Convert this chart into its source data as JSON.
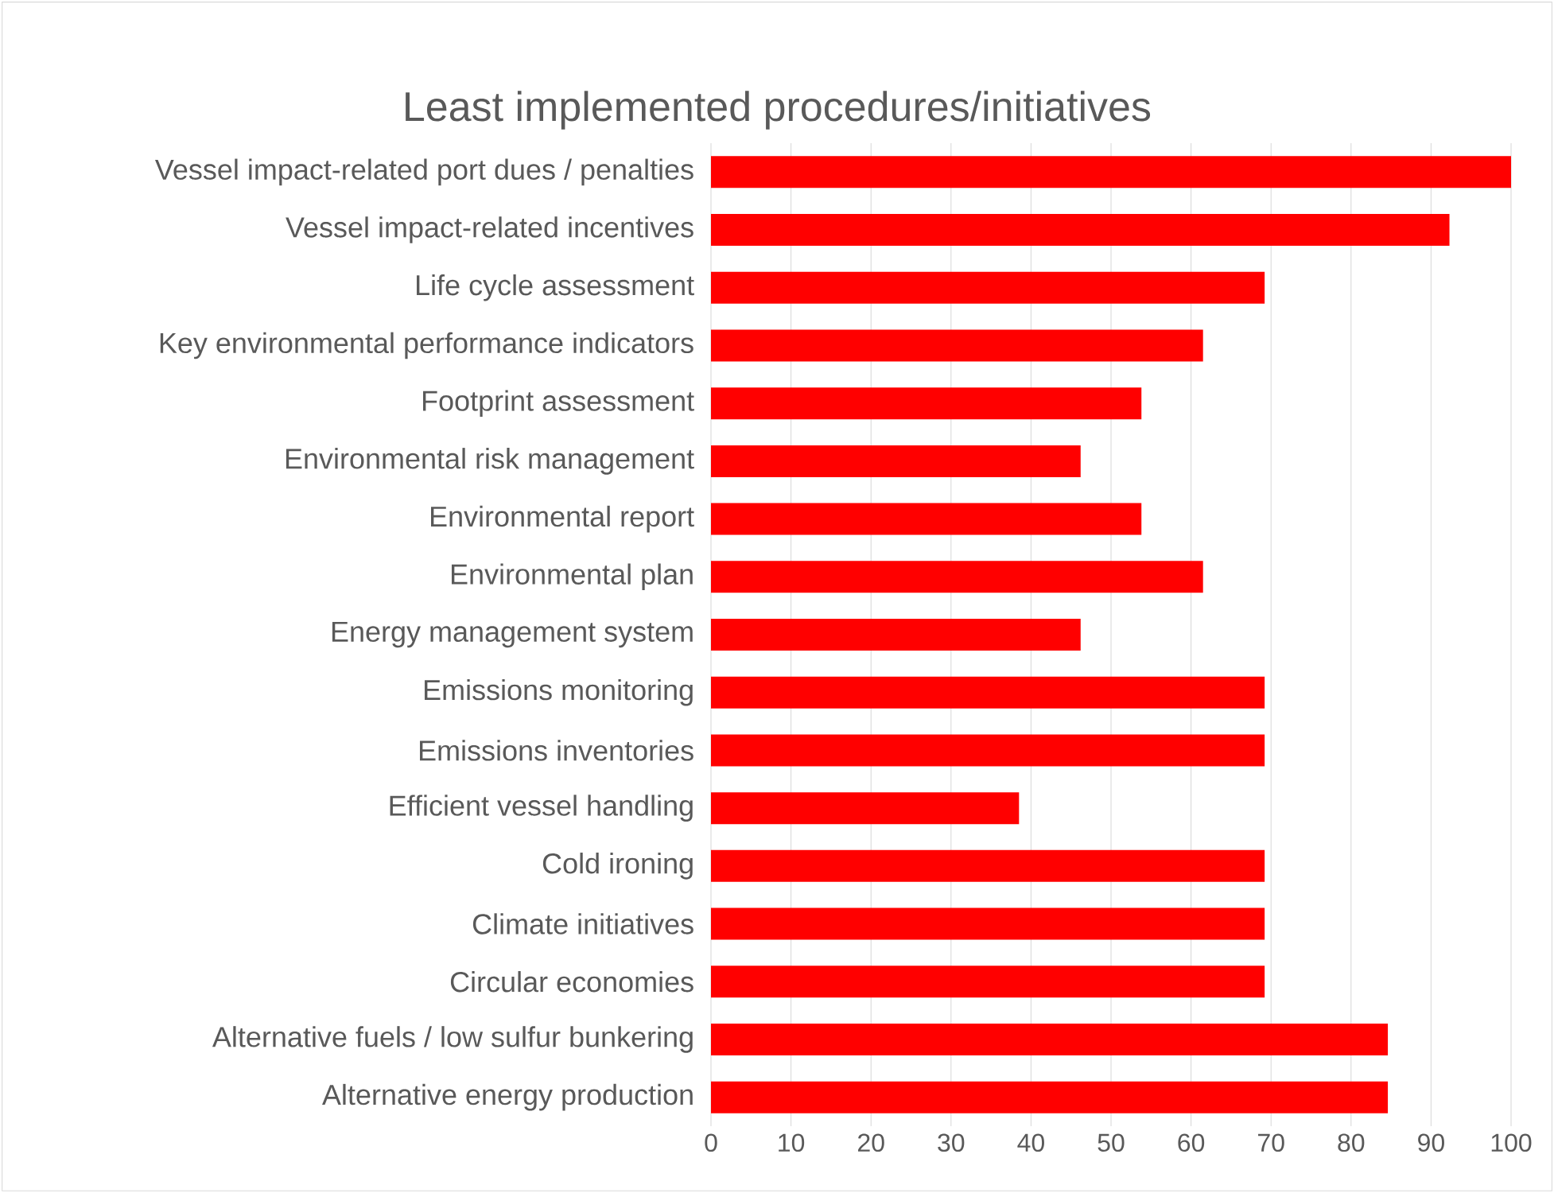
{
  "chart_data": {
    "type": "bar",
    "orientation": "horizontal",
    "title": "Least implemented procedures/initiatives",
    "categories": [
      "Vessel impact-related port dues / penalties",
      "Vessel impact-related incentives",
      "Life cycle assessment",
      "Key environmental performance indicators",
      "Footprint assessment",
      "Environmental risk management",
      "Environmental report",
      "Environmental plan",
      "Energy management system",
      "Emissions monitoring",
      "Emissions inventories",
      "Efficient vessel handling",
      "Cold ironing",
      "Climate initiatives",
      "Circular economies",
      "Alternative fuels / low sulfur bunkering",
      "Alternative energy production"
    ],
    "values": [
      100,
      92.3,
      69.2,
      61.5,
      53.8,
      46.2,
      53.8,
      61.5,
      46.2,
      69.2,
      69.2,
      38.5,
      69.2,
      69.2,
      69.2,
      84.6,
      84.6
    ],
    "color": "#ff0000",
    "xlim": [
      0,
      100
    ],
    "xticks": [
      0,
      10,
      20,
      30,
      40,
      50,
      60,
      70,
      80,
      90,
      100
    ],
    "grid": "x"
  }
}
